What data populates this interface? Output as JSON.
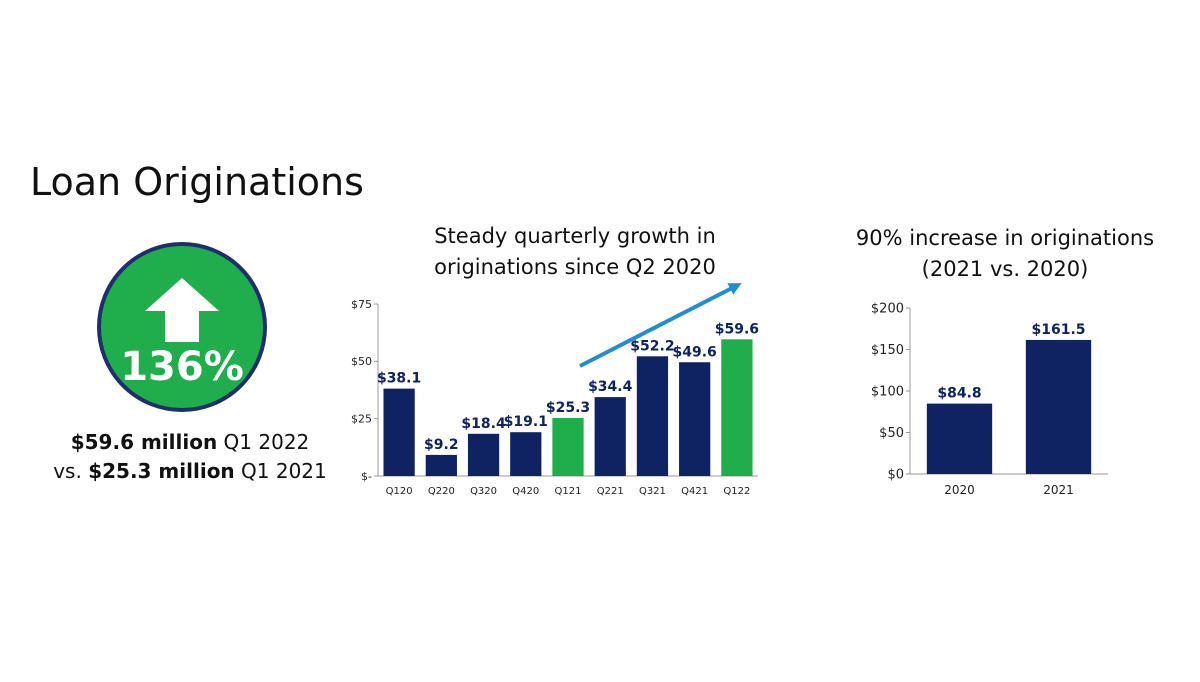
{
  "page_title": "Loan Originations",
  "highlight": {
    "percent": "136%",
    "line1_value": "$59.6 million",
    "line1_rest": "Q1 2022",
    "line2_prefix": "vs.",
    "line2_value": "$25.3 million",
    "line2_rest": "Q1 2021",
    "icon": "up-arrow-icon"
  },
  "colors": {
    "navy": "#0f2261",
    "green": "#1fae4b",
    "arrow": "#1f8fcf"
  },
  "chart_data": [
    {
      "type": "bar",
      "title_line1": "Steady quarterly growth in",
      "title_line2": "originations since Q2 2020",
      "categories": [
        "Q120",
        "Q220",
        "Q320",
        "Q420",
        "Q121",
        "Q221",
        "Q321",
        "Q421",
        "Q122"
      ],
      "values": [
        38.1,
        9.2,
        18.4,
        19.1,
        25.3,
        34.4,
        52.2,
        49.6,
        59.6
      ],
      "labels": [
        "$38.1",
        "$9.2",
        "$18.4",
        "$19.1",
        "$25.3",
        "$34.4",
        "$52.2",
        "$49.6",
        "$59.6"
      ],
      "highlighted": [
        "Q121",
        "Q122"
      ],
      "ylim": [
        0,
        75
      ],
      "yticks": [
        0,
        25,
        50,
        75
      ],
      "ytick_labels": [
        "$-",
        "$25",
        "$50",
        "$75"
      ],
      "grid": false
    },
    {
      "type": "bar",
      "title_line1": "90% increase in originations",
      "title_line2": "(2021 vs. 2020)",
      "categories": [
        "2020",
        "2021"
      ],
      "values": [
        84.8,
        161.5
      ],
      "labels": [
        "$84.8",
        "$161.5"
      ],
      "ylim": [
        0,
        200
      ],
      "yticks": [
        0,
        50,
        100,
        150,
        200
      ],
      "ytick_labels": [
        "$0",
        "$50",
        "$100",
        "$150",
        "$200"
      ],
      "grid": false
    }
  ]
}
